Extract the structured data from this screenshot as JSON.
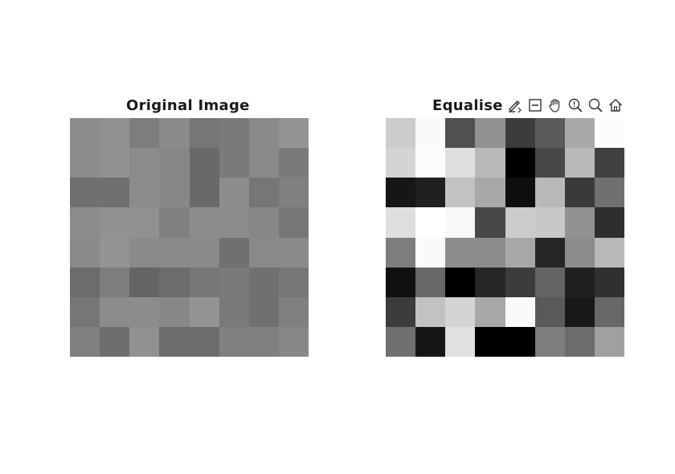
{
  "figure": {
    "axes": [
      {
        "title": "Original Image",
        "pixels": [
          [
            140,
            145,
            125,
            138,
            118,
            122,
            138,
            148
          ],
          [
            140,
            145,
            140,
            135,
            105,
            122,
            138,
            122
          ],
          [
            112,
            112,
            140,
            135,
            105,
            140,
            118,
            128
          ],
          [
            140,
            145,
            145,
            128,
            140,
            140,
            135,
            118
          ],
          [
            138,
            148,
            138,
            138,
            138,
            112,
            138,
            138
          ],
          [
            108,
            125,
            100,
            108,
            118,
            122,
            112,
            118
          ],
          [
            118,
            140,
            140,
            135,
            148,
            122,
            112,
            128
          ],
          [
            128,
            110,
            145,
            108,
            108,
            128,
            128,
            135
          ]
        ]
      },
      {
        "title": "Equalise",
        "pixels": [
          [
            204,
            250,
            80,
            145,
            60,
            90,
            168,
            252
          ],
          [
            212,
            252,
            222,
            184,
            0,
            72,
            184,
            64
          ],
          [
            22,
            32,
            194,
            168,
            14,
            184,
            58,
            112
          ],
          [
            222,
            255,
            248,
            72,
            204,
            200,
            145,
            46
          ],
          [
            125,
            250,
            140,
            140,
            168,
            38,
            140,
            184
          ],
          [
            16,
            104,
            0,
            38,
            60,
            100,
            32,
            48
          ],
          [
            60,
            194,
            212,
            168,
            250,
            90,
            24,
            104
          ],
          [
            112,
            22,
            224,
            0,
            0,
            125,
            108,
            160
          ]
        ]
      }
    ]
  },
  "toolbar": {
    "tools": [
      {
        "name": "save-icon"
      },
      {
        "name": "zoom-out-icon"
      },
      {
        "name": "pan-icon"
      },
      {
        "name": "data-tip-icon"
      },
      {
        "name": "zoom-in-icon"
      },
      {
        "name": "home-icon"
      }
    ]
  }
}
